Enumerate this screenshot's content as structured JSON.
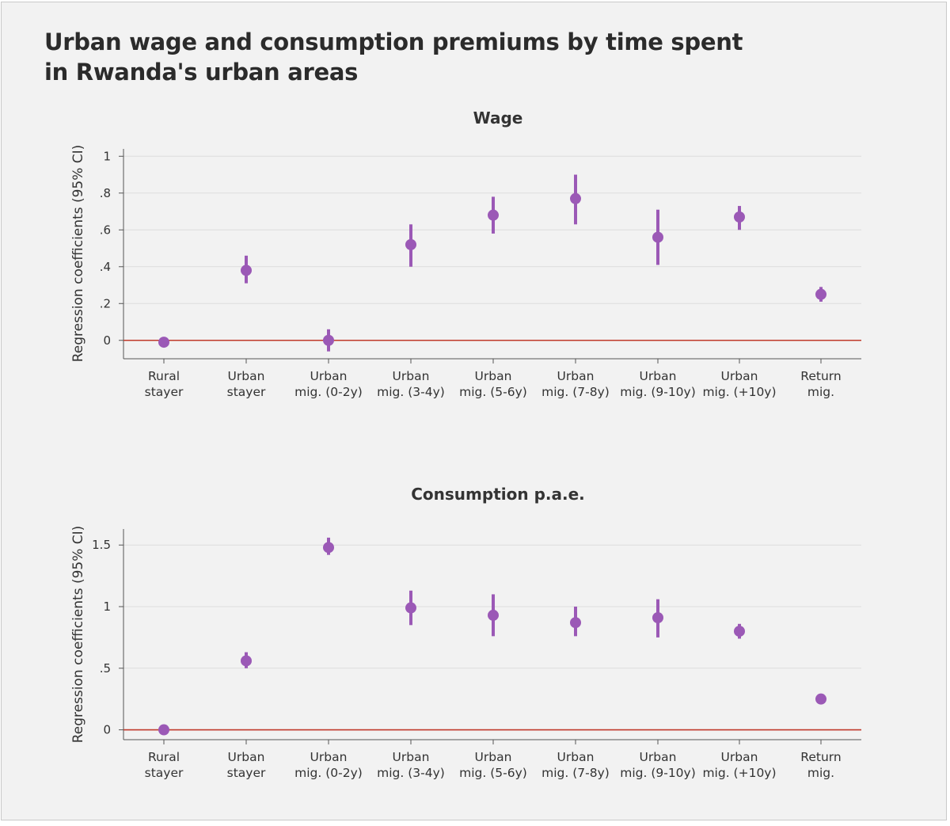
{
  "title": "Urban wage and consumption premiums by time spent in Rwanda's urban areas",
  "colors": {
    "point": "#9b59b6",
    "zero_line": "#c0392b",
    "grid": "#dddddd",
    "axis": "#555555"
  },
  "chart_data": [
    {
      "type": "scatter",
      "subtype": "point-range (coefficient plot)",
      "title": "Wage",
      "ylabel": "Regression coefficients (95% CI)",
      "ylim": [
        -0.1,
        1.04
      ],
      "yticks": [
        0,
        0.2,
        0.4,
        0.6,
        0.8,
        1
      ],
      "ytick_labels": [
        "0",
        ".2",
        ".4",
        ".6",
        ".8",
        "1"
      ],
      "reference_line": 0,
      "grid": true,
      "categories": [
        [
          "Rural",
          "stayer"
        ],
        [
          "Urban",
          "stayer"
        ],
        [
          "Urban",
          "mig. (0-2y)"
        ],
        [
          "Urban",
          "mig. (3-4y)"
        ],
        [
          "Urban",
          "mig. (5-6y)"
        ],
        [
          "Urban",
          "mig. (7-8y)"
        ],
        [
          "Urban",
          "mig. (9-10y)"
        ],
        [
          "Urban",
          "mig. (+10y)"
        ],
        [
          "Return",
          "mig."
        ]
      ],
      "values": [
        -0.01,
        0.38,
        0.0,
        0.52,
        0.68,
        0.77,
        0.56,
        0.67,
        0.25
      ],
      "ci_low": [
        -0.01,
        0.31,
        -0.06,
        0.4,
        0.58,
        0.63,
        0.41,
        0.6,
        0.21
      ],
      "ci_high": [
        -0.01,
        0.46,
        0.06,
        0.63,
        0.78,
        0.9,
        0.71,
        0.73,
        0.29
      ]
    },
    {
      "type": "scatter",
      "subtype": "point-range (coefficient plot)",
      "title": "Consumption p.a.e.",
      "ylabel": "Regression coefficients (95% CI)",
      "ylim": [
        -0.08,
        1.63
      ],
      "yticks": [
        0,
        0.5,
        1,
        1.5
      ],
      "ytick_labels": [
        "0",
        ".5",
        "1",
        "1.5"
      ],
      "reference_line": 0,
      "grid": true,
      "categories": [
        [
          "Rural",
          "stayer"
        ],
        [
          "Urban",
          "stayer"
        ],
        [
          "Urban",
          "mig. (0-2y)"
        ],
        [
          "Urban",
          "mig. (3-4y)"
        ],
        [
          "Urban",
          "mig. (5-6y)"
        ],
        [
          "Urban",
          "mig. (7-8y)"
        ],
        [
          "Urban",
          "mig. (9-10y)"
        ],
        [
          "Urban",
          "mig. (+10y)"
        ],
        [
          "Return",
          "mig."
        ]
      ],
      "values": [
        0.0,
        0.56,
        1.48,
        0.99,
        0.93,
        0.87,
        0.91,
        0.8,
        0.25
      ],
      "ci_low": [
        0.0,
        0.5,
        1.42,
        0.85,
        0.76,
        0.76,
        0.75,
        0.74,
        0.25
      ],
      "ci_high": [
        0.0,
        0.63,
        1.56,
        1.13,
        1.1,
        1.0,
        1.06,
        0.86,
        0.25
      ]
    }
  ]
}
